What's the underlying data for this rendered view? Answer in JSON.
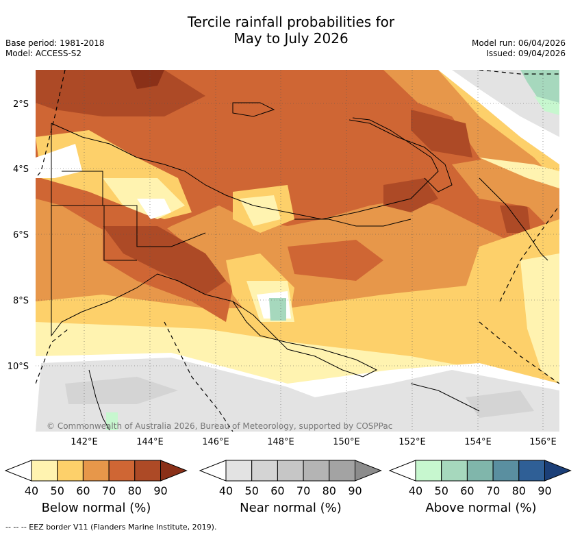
{
  "title_line1": "Tercile rainfall probabilities for",
  "title_line2": "May to July 2026",
  "base_period": "Base period: 1981-2018",
  "model": "Model: ACCESS-S2",
  "model_run": "Model run: 06/04/2026",
  "issued": "Issued: 09/04/2026",
  "copyright": "© Commonwealth of Australia 2026, Bureau of Meteorology, supported by COSPPac",
  "footer": "-- -- -- EEZ border V11 (Flanders Marine Institute, 2019).",
  "map": {
    "lat_labels": [
      "2°S",
      "4°S",
      "6°S",
      "8°S",
      "10°S"
    ],
    "lon_labels": [
      "142°E",
      "144°E",
      "146°E",
      "148°E",
      "150°E",
      "152°E",
      "154°E",
      "156°E"
    ]
  },
  "colorbars": [
    {
      "name": "below",
      "label": "Below normal (%)",
      "ticks": [
        "40",
        "50",
        "60",
        "70",
        "80",
        "90"
      ],
      "colors": [
        "#fff3b0",
        "#fdd06a",
        "#e7974a",
        "#cf6634",
        "#ad4a26",
        "#8a3018"
      ]
    },
    {
      "name": "near",
      "label": "Near normal (%)",
      "ticks": [
        "40",
        "50",
        "60",
        "70",
        "80",
        "90"
      ],
      "colors": [
        "#e3e3e3",
        "#d4d4d4",
        "#c6c6c6",
        "#b4b4b4",
        "#a3a3a3",
        "#8c8c8c"
      ]
    },
    {
      "name": "above",
      "label": "Above normal (%)",
      "ticks": [
        "40",
        "50",
        "60",
        "70",
        "80",
        "90"
      ],
      "colors": [
        "#c7f7cf",
        "#a6d8bd",
        "#80b6ab",
        "#5a8fa0",
        "#2f5f96",
        "#1b3f78"
      ]
    }
  ]
}
